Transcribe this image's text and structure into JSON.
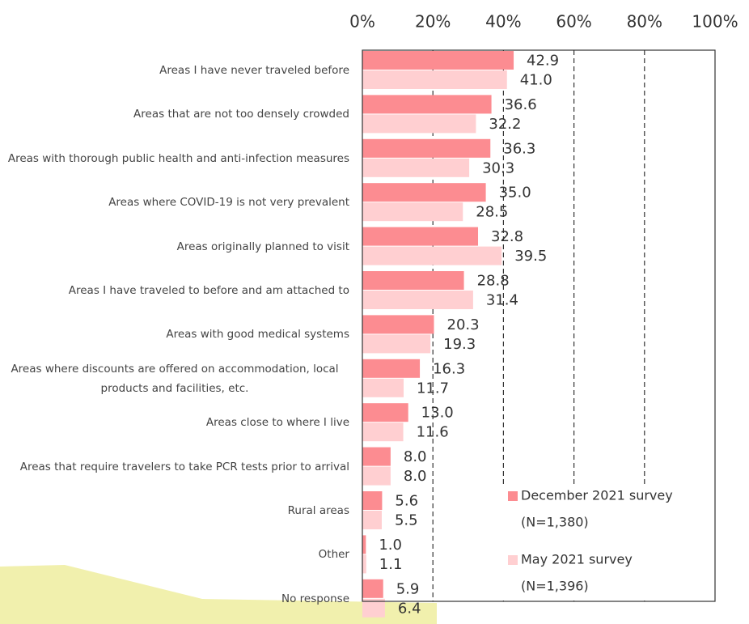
{
  "chart_data": {
    "type": "bar",
    "orientation": "horizontal",
    "categories": [
      "Areas I have never traveled before",
      "Areas that are not too densely crowded",
      "Areas with thorough public health and anti-infection measures",
      "Areas where COVID-19 is not very prevalent",
      "Areas originally planned to visit",
      "Areas I have traveled to before and am attached to",
      "Areas with good medical systems",
      "Areas where discounts are offered on accommodation, local products and facilities, etc.",
      "Areas close to where I live",
      "Areas that require travelers to take PCR tests prior to arrival",
      "Rural areas",
      "Other",
      "No response"
    ],
    "series": [
      {
        "name": "December 2021 survey",
        "sample": "(N=1,380)",
        "color": "#fc8c91",
        "values": [
          42.9,
          36.6,
          36.3,
          35,
          32.8,
          28.8,
          20.3,
          16.3,
          13,
          8,
          5.6,
          1,
          5.9
        ],
        "value_labels": [
          "42.9",
          "36.6",
          "36.3",
          "35.0",
          "32.8",
          "28.8",
          "20.3",
          "16.3",
          "13.0",
          "8.0",
          "5.6",
          "1.0",
          "5.9"
        ]
      },
      {
        "name": "May 2021 survey",
        "sample": "(N=1,396)",
        "color": "#ffcfd1",
        "values": [
          41,
          32.2,
          30.3,
          28.5,
          39.5,
          31.4,
          19.3,
          11.7,
          11.6,
          8,
          5.5,
          1.1,
          6.4
        ],
        "value_labels": [
          "41.0",
          "32.2",
          "30.3",
          "28.5",
          "39.5",
          "31.4",
          "19.3",
          "11.7",
          "11.6",
          "8.0",
          "5.5",
          "1.1",
          "6.4"
        ]
      }
    ],
    "xlim": [
      0,
      100
    ],
    "xticks": [
      {
        "value": 0,
        "label": "0%"
      },
      {
        "value": 20,
        "label": "20%"
      },
      {
        "value": 40,
        "label": "40%"
      },
      {
        "value": 60,
        "label": "60%"
      },
      {
        "value": 80,
        "label": "80%"
      },
      {
        "value": 100,
        "label": "100%"
      }
    ],
    "grid": true
  }
}
